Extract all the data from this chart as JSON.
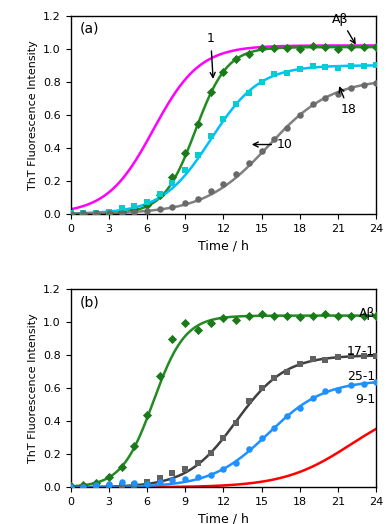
{
  "panel_a": {
    "label": "(a)",
    "abeta_color": "#FF00FF",
    "c1_color": "#228B22",
    "c10_color": "#00BFFF",
    "c18_color": "#808080",
    "c1_marker_color": "#1A7A1A",
    "c10_marker_color": "#00CED1",
    "c18_marker_color": "#696969",
    "abeta_params": [
      6.5,
      0.55,
      1.02
    ],
    "c1_params": [
      9.8,
      0.8,
      1.01
    ],
    "c10_params": [
      11.0,
      0.52,
      0.9
    ],
    "c18_params": [
      15.5,
      0.4,
      0.82
    ]
  },
  "panel_b": {
    "label": "(b)",
    "abeta_color": "#228B22",
    "c91_color": "#FF0000",
    "c171_color": "#404040",
    "c251_color": "#1E90FF",
    "abeta_marker_color": "#1A7A1A",
    "c171_marker_color": "#606060",
    "c251_marker_color": "#1E90FF",
    "abeta_params": [
      6.5,
      0.8,
      1.04
    ],
    "c91_params": [
      22.0,
      0.38,
      0.52
    ],
    "c171_params": [
      13.0,
      0.52,
      0.8
    ],
    "c251_params": [
      15.5,
      0.45,
      0.65
    ]
  },
  "ylim": [
    0,
    1.2
  ],
  "xlim": [
    0,
    24
  ],
  "xticks": [
    0,
    3,
    6,
    9,
    12,
    15,
    18,
    21,
    24
  ],
  "yticks": [
    0.0,
    0.2,
    0.4,
    0.6,
    0.8,
    1.0,
    1.2
  ],
  "xlabel": "Time / h",
  "ylabel": "ThT Fluorescence Intensity"
}
